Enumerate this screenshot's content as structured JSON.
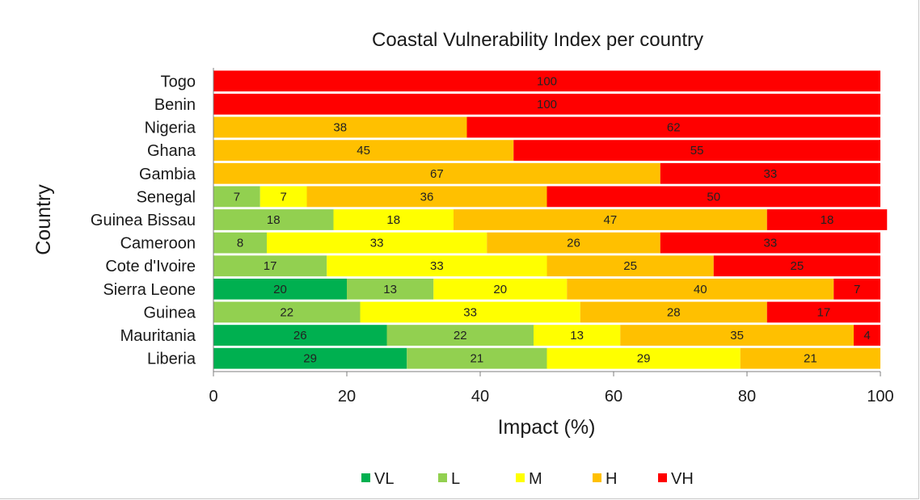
{
  "chart_data": {
    "type": "bar",
    "orientation": "horizontal",
    "stacked": true,
    "title": "Coastal Vulnerability Index per country",
    "xlabel": "Impact (%)",
    "ylabel": "Country",
    "xlim": [
      0,
      100
    ],
    "xticks": [
      "0",
      "20",
      "40",
      "60",
      "80",
      "100"
    ],
    "grid": false,
    "legend_position": "bottom",
    "categories": [
      "Togo",
      "Benin",
      "Nigeria",
      "Ghana",
      "Gambia",
      "Senegal",
      "Guinea Bissau",
      "Cameroon",
      "Cote d'Ivoire",
      "Sierra Leone",
      "Guinea",
      "Mauritania",
      "Liberia"
    ],
    "series": [
      {
        "name": "VL",
        "color": "#00b050",
        "values": [
          0,
          0,
          0,
          0,
          0,
          0,
          0,
          0,
          0,
          20,
          0,
          26,
          29
        ]
      },
      {
        "name": "L",
        "color": "#92d050",
        "values": [
          0,
          0,
          0,
          0,
          0,
          7,
          18,
          8,
          17,
          13,
          22,
          22,
          21
        ]
      },
      {
        "name": "M",
        "color": "#ffff00",
        "values": [
          0,
          0,
          0,
          0,
          0,
          7,
          18,
          33,
          33,
          20,
          33,
          13,
          29
        ]
      },
      {
        "name": "H",
        "color": "#ffc000",
        "values": [
          0,
          0,
          38,
          45,
          67,
          36,
          47,
          26,
          25,
          40,
          28,
          35,
          21
        ]
      },
      {
        "name": "VH",
        "color": "#ff0000",
        "values": [
          100,
          100,
          62,
          55,
          33,
          50,
          18,
          33,
          25,
          7,
          17,
          4,
          0
        ]
      }
    ]
  }
}
